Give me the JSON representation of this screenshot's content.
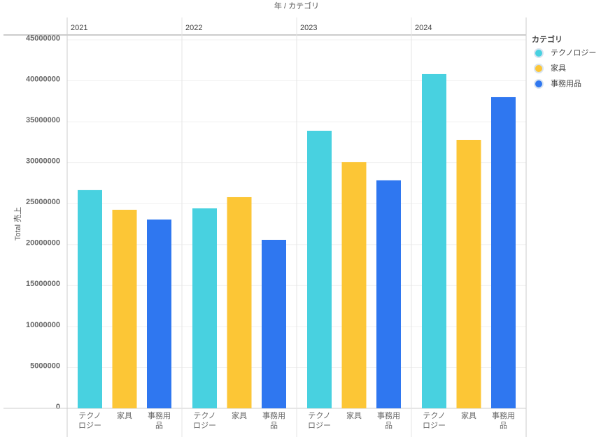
{
  "chart_data": {
    "type": "bar",
    "x_label": "年 / カテゴリ",
    "y_label": "Total 売上",
    "legend_title": "カテゴリ",
    "categories": [
      "2021",
      "2022",
      "2023",
      "2024"
    ],
    "series": [
      {
        "name": "テクノロジー",
        "color": "#48d1e0",
        "values": [
          26650000,
          24420000,
          33900000,
          40820000
        ]
      },
      {
        "name": "家具",
        "color": "#fcc636",
        "values": [
          24250000,
          25790000,
          30060000,
          32790000
        ]
      },
      {
        "name": "事務用品",
        "color": "#2f77f0",
        "values": [
          23060000,
          20580000,
          27840000,
          38000000
        ]
      }
    ],
    "ylim": [
      0,
      45000000
    ],
    "yticks": [
      0,
      5000000,
      10000000,
      15000000,
      20000000,
      25000000,
      30000000,
      35000000,
      40000000,
      45000000
    ],
    "grid": true,
    "legend": "right"
  }
}
